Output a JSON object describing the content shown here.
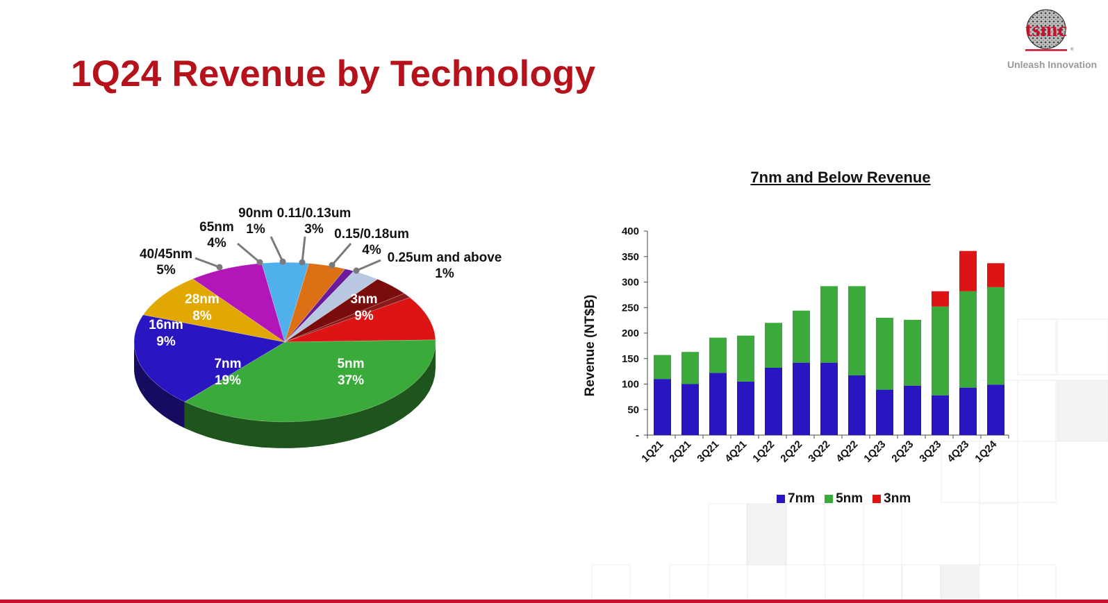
{
  "slide": {
    "title": "1Q24 Revenue by Technology",
    "brand": {
      "logo_text": "tsmc",
      "tagline": "Unleash Innovation"
    },
    "accent_color": "#b5121b"
  },
  "chart_data": [
    {
      "type": "pie",
      "title": "",
      "slices": [
        {
          "label": "3nm",
          "value": 9,
          "display": "9%",
          "color": "#dc1414"
        },
        {
          "label": "5nm",
          "value": 37,
          "display": "37%",
          "color": "#3aaa3a"
        },
        {
          "label": "7nm",
          "value": 19,
          "display": "19%",
          "color": "#2a16c0"
        },
        {
          "label": "16nm",
          "value": 9,
          "display": "9%",
          "color": "#e0a800"
        },
        {
          "label": "28nm",
          "value": 8,
          "display": "8%",
          "color": "#b316b8"
        },
        {
          "label": "40/45nm",
          "value": 5,
          "display": "5%",
          "color": "#50b0ec"
        },
        {
          "label": "65nm",
          "value": 4,
          "display": "4%",
          "color": "#dc7014"
        },
        {
          "label": "90nm",
          "value": 1,
          "display": "1%",
          "color": "#6a1a9a"
        },
        {
          "label": "0.11/0.13um",
          "value": 3,
          "display": "3%",
          "color": "#b8c8e0"
        },
        {
          "label": "0.15/0.18um",
          "value": 4,
          "display": "4%",
          "color": "#7a0c0c"
        },
        {
          "label": "0.25um and above",
          "value": 1,
          "display": "1%",
          "color": "#8a1a1a"
        }
      ]
    },
    {
      "type": "bar",
      "stacked": true,
      "title": "7nm and Below Revenue",
      "xlabel": "",
      "ylabel": "Revenue (NT$B)",
      "ylim": [
        0,
        400
      ],
      "yticks": [
        0,
        50,
        100,
        150,
        200,
        250,
        300,
        350,
        400
      ],
      "ytick_labels": [
        "-",
        "50",
        "100",
        "150",
        "200",
        "250",
        "300",
        "350",
        "400"
      ],
      "categories": [
        "1Q21",
        "2Q21",
        "3Q21",
        "4Q21",
        "1Q22",
        "2Q22",
        "3Q22",
        "4Q22",
        "1Q23",
        "2Q23",
        "3Q23",
        "4Q23",
        "1Q24"
      ],
      "series": [
        {
          "name": "7nm",
          "color": "#2a16c0",
          "values": [
            110,
            100,
            122,
            105,
            132,
            142,
            142,
            117,
            89,
            97,
            78,
            93,
            99
          ]
        },
        {
          "name": "5nm",
          "color": "#3aaa3a",
          "values": [
            47,
            63,
            69,
            90,
            88,
            102,
            150,
            175,
            141,
            129,
            174,
            189,
            191
          ]
        },
        {
          "name": "3nm",
          "color": "#dc1414",
          "values": [
            0,
            0,
            0,
            0,
            0,
            0,
            0,
            0,
            0,
            0,
            30,
            79,
            47
          ]
        }
      ],
      "legend_position": "bottom"
    }
  ]
}
